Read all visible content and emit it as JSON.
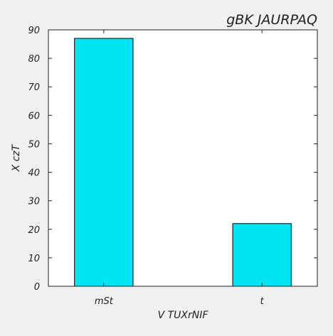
{
  "chart_data": {
    "type": "bar",
    "title": "gBK JAURPAQ",
    "xlabel": "V TUXrNIF",
    "ylabel": "X czT",
    "categories": [
      "mSt",
      "t"
    ],
    "values": [
      87,
      22
    ],
    "ylim": [
      0,
      90
    ],
    "yticks": [
      0,
      10,
      20,
      30,
      40,
      50,
      60,
      70,
      80,
      90
    ],
    "grid": false,
    "legend": "none",
    "colors": {
      "bar_fill": "#00e5f4",
      "bar_stroke": "#000000",
      "background": "#f0f0f0",
      "plot_background": "#ffffff",
      "axis": "#222222"
    }
  }
}
